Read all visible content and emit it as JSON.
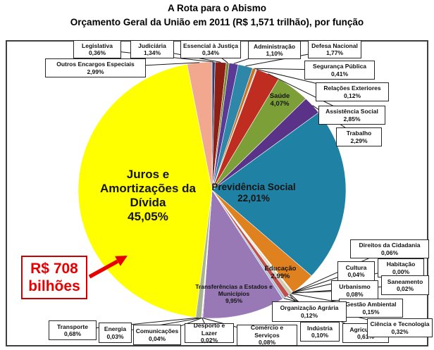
{
  "page": {
    "title": "A Rota para o Abismo",
    "subtitle": "Orçamento Geral da União em 2011 (R$ 1,571 trilhão), por função"
  },
  "annotation": {
    "line1": "R$ 708",
    "line2": "bilhões",
    "color": "#e60000",
    "target_slice": "juros"
  },
  "chart_data": {
    "type": "pie",
    "title": "A Rota para o Abismo",
    "subtitle": "Orçamento Geral da União em 2011 (R$ 1,571 trilhão), por função",
    "unit": "%",
    "decimal_style": "comma",
    "legend_position": "none",
    "label_style_note": "small callout boxes around pie; large slices labeled inside",
    "slices": [
      {
        "id": "legislativa",
        "label": "Legislativa",
        "value": 0.36,
        "value_label": "0,36%",
        "color": "#24407e",
        "label_style": "callout"
      },
      {
        "id": "judiciaria",
        "label": "Judiciária",
        "value": 1.34,
        "value_label": "1,34%",
        "color": "#8e1f14",
        "label_style": "callout"
      },
      {
        "id": "essencial",
        "label": "Essencial à Justiça",
        "value": 0.34,
        "value_label": "0,34%",
        "color": "#75862d",
        "label_style": "callout"
      },
      {
        "id": "administracao",
        "label": "Administração",
        "value": 1.1,
        "value_label": "1,10%",
        "color": "#5b3a96",
        "label_style": "callout"
      },
      {
        "id": "defesa",
        "label": "Defesa Nacional",
        "value": 1.77,
        "value_label": "1,77%",
        "color": "#2e86a8",
        "label_style": "callout"
      },
      {
        "id": "seguranca",
        "label": "Segurança Pública",
        "value": 0.41,
        "value_label": "0,41%",
        "color": "#c9721f",
        "label_style": "callout"
      },
      {
        "id": "relacoes",
        "label": "Relações Exteriores",
        "value": 0.12,
        "value_label": "0,12%",
        "color": "#a9c3db",
        "label_style": "callout"
      },
      {
        "id": "assistencia",
        "label": "Assistência Social",
        "value": 2.85,
        "value_label": "2,85%",
        "color": "#be2d1f",
        "label_style": "callout"
      },
      {
        "id": "saude",
        "label": "Saúde",
        "value": 4.07,
        "value_label": "4,07%",
        "color": "#7c9f38",
        "label_style": "inside"
      },
      {
        "id": "trabalho",
        "label": "Trabalho",
        "value": 2.29,
        "value_label": "2,29%",
        "color": "#5a3287",
        "label_style": "callout"
      },
      {
        "id": "previdencia",
        "label": "Previdência Social",
        "value": 22.01,
        "value_label": "22,01%",
        "color": "#1f81a4",
        "label_style": "inside"
      },
      {
        "id": "educacao",
        "label": "Educação",
        "value": 2.99,
        "value_label": "2,99%",
        "color": "#e0811f",
        "label_style": "inside"
      },
      {
        "id": "direitos",
        "label": "Direitos da Cidadania",
        "value": 0.06,
        "value_label": "0,06%",
        "color": "#4f6228",
        "label_style": "callout"
      },
      {
        "id": "cultura",
        "label": "Cultura",
        "value": 0.04,
        "value_label": "0,04%",
        "color": "#943c8c",
        "label_style": "callout"
      },
      {
        "id": "habitacao",
        "label": "Habitação",
        "value": 0.0,
        "value_label": "0,00%",
        "color": "#d0cece",
        "label_style": "callout"
      },
      {
        "id": "urbanismo",
        "label": "Urbanismo",
        "value": 0.08,
        "value_label": "0,08%",
        "color": "#31859c",
        "label_style": "callout"
      },
      {
        "id": "saneamento",
        "label": "Saneamento",
        "value": 0.02,
        "value_label": "0,02%",
        "color": "#e2c315",
        "label_style": "callout"
      },
      {
        "id": "gestao",
        "label": "Gestão Ambiental",
        "value": 0.15,
        "value_label": "0,15%",
        "color": "#c3a25f",
        "label_style": "callout"
      },
      {
        "id": "organizacao",
        "label": "Organização Agrária",
        "value": 0.12,
        "value_label": "0,12%",
        "color": "#89a038",
        "label_style": "callout"
      },
      {
        "id": "industria",
        "label": "Indústria",
        "value": 0.1,
        "value_label": "0,10%",
        "color": "#5f7fa0",
        "label_style": "callout"
      },
      {
        "id": "agricultura",
        "label": "Agricultura",
        "value": 0.61,
        "value_label": "0,61%",
        "color": "#c0504d",
        "label_style": "callout"
      },
      {
        "id": "ciencia",
        "label": "Ciência e Tecnologia",
        "value": 0.32,
        "value_label": "0,32%",
        "color": "#a9bfd8",
        "label_style": "callout"
      },
      {
        "id": "transferencias",
        "label": "Transferências a Estados e Municípios",
        "value": 9.95,
        "value_label": "9,95%",
        "color": "#9879b6",
        "label_style": "inside"
      },
      {
        "id": "comercio",
        "label": "Comércio e Serviços",
        "value": 0.08,
        "value_label": "0,08%",
        "color": "#b55a8e",
        "label_style": "callout"
      },
      {
        "id": "desporto",
        "label": "Desporto e Lazer",
        "value": 0.02,
        "value_label": "0,02%",
        "color": "#808080",
        "label_style": "callout"
      },
      {
        "id": "comunicacoes",
        "label": "Comunicações",
        "value": 0.04,
        "value_label": "0,04%",
        "color": "#4bacc6",
        "label_style": "callout"
      },
      {
        "id": "energia",
        "label": "Energia",
        "value": 0.03,
        "value_label": "0,03%",
        "color": "#edc831",
        "label_style": "callout"
      },
      {
        "id": "transporte",
        "label": "Transporte",
        "value": 0.68,
        "value_label": "0,68%",
        "color": "#a8b494",
        "label_style": "callout"
      },
      {
        "id": "juros",
        "label": "Juros e Amortizações da Dívida",
        "value": 45.05,
        "value_label": "45,05%",
        "color": "#ffff00",
        "label_style": "inside"
      },
      {
        "id": "outros",
        "label": "Outros Encargos Especiais",
        "value": 2.99,
        "value_label": "2,99%",
        "color": "#f2a88f",
        "label_style": "callout"
      }
    ],
    "annotation": {
      "label": "R$ 708 bilhões",
      "target_slice": "juros"
    }
  }
}
